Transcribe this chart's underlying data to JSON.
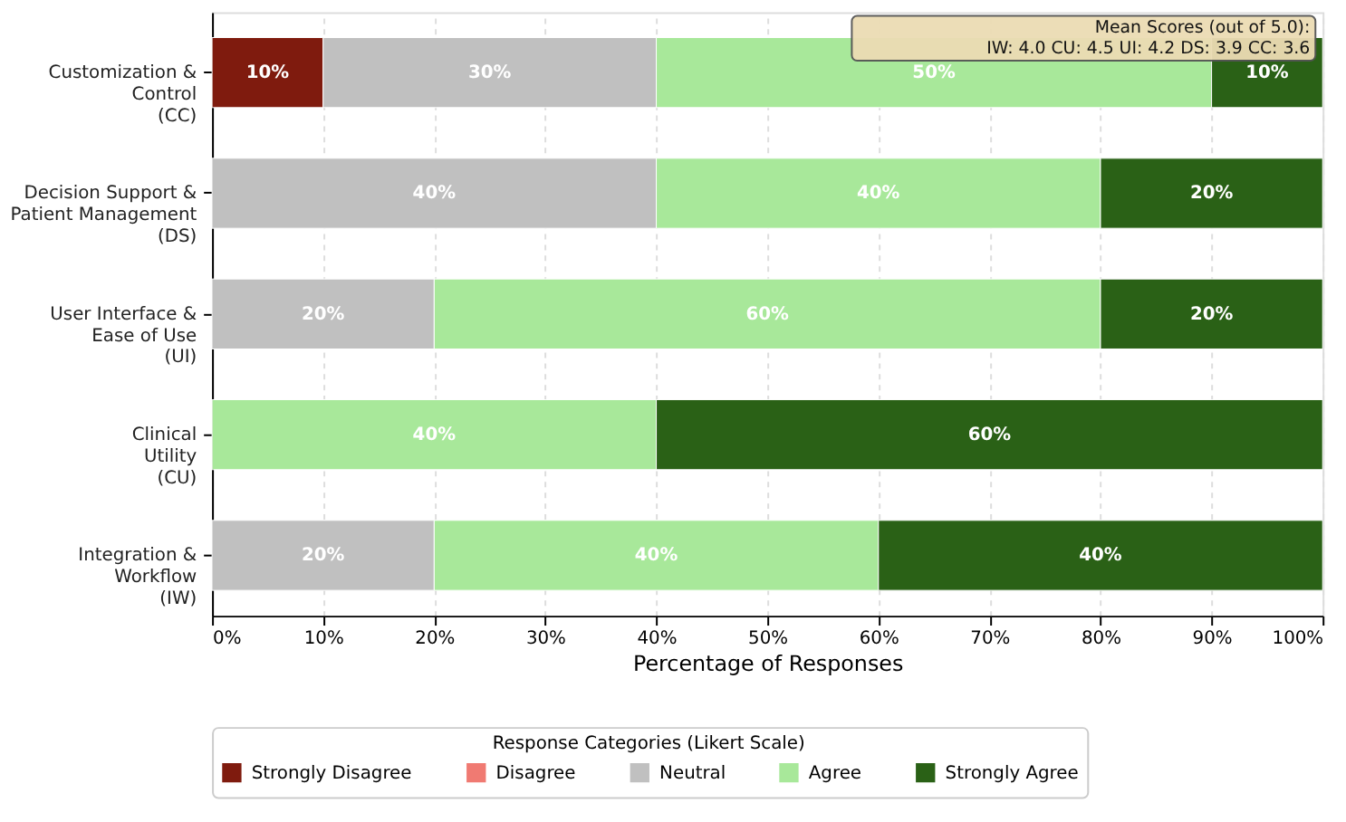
{
  "chart_data": {
    "type": "bar",
    "orientation": "horizontal",
    "stacked": true,
    "categories": [
      "Customization &\nControl\n(CC)",
      "Decision Support &\nPatient Management\n(DS)",
      "User Interface &\nEase of Use\n(UI)",
      "Clinical\nUtility\n(CU)",
      "Integration &\nWorkflow\n(IW)"
    ],
    "series": [
      {
        "name": "Strongly Disagree",
        "color": "#7f1b0e",
        "values": [
          10,
          null,
          null,
          null,
          null
        ],
        "value_labels": [
          "10%",
          null,
          null,
          null,
          null
        ]
      },
      {
        "name": "Disagree",
        "color": "#f07a72",
        "values": [
          null,
          null,
          null,
          null,
          null
        ],
        "value_labels": [
          null,
          null,
          null,
          null,
          null
        ]
      },
      {
        "name": "Neutral",
        "color": "#c0c0c0",
        "values": [
          30,
          40,
          20,
          null,
          20
        ],
        "value_labels": [
          "30%",
          "40%",
          "20%",
          null,
          "20%"
        ]
      },
      {
        "name": "Agree",
        "color": "#a8e89a",
        "values": [
          50,
          40,
          60,
          40,
          40
        ],
        "value_labels": [
          "50%",
          "40%",
          "60%",
          "40%",
          "40%"
        ]
      },
      {
        "name": "Strongly Agree",
        "color": "#2a6116",
        "values": [
          10,
          20,
          20,
          60,
          40
        ],
        "value_labels": [
          "10%",
          "20%",
          "20%",
          "60%",
          "40%"
        ]
      }
    ],
    "xlabel": "Percentage of Responses",
    "xlim": [
      0,
      100
    ],
    "xticks": [
      {
        "value": 0,
        "label": "0%"
      },
      {
        "value": 10,
        "label": "10%"
      },
      {
        "value": 20,
        "label": "20%"
      },
      {
        "value": 30,
        "label": "30%"
      },
      {
        "value": 40,
        "label": "40%"
      },
      {
        "value": 50,
        "label": "50%"
      },
      {
        "value": 60,
        "label": "60%"
      },
      {
        "value": 70,
        "label": "70%"
      },
      {
        "value": 80,
        "label": "80%"
      },
      {
        "value": 90,
        "label": "90%"
      },
      {
        "value": 100,
        "label": "100%"
      }
    ],
    "grid": "x",
    "legend": "bottom",
    "legend_title": "Response Categories (Likert Scale)",
    "annotations": [
      "Mean Scores (out of 5.0):\nIW: 4.0  CU: 4.5  UI: 4.2  DS: 3.9  CC: 3.6"
    ]
  }
}
